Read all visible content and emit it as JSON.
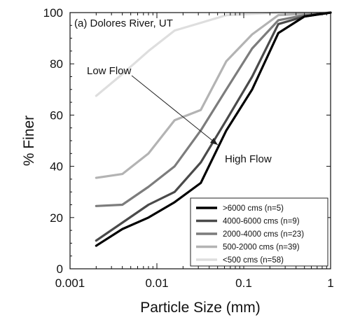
{
  "chart_data": {
    "type": "line",
    "title": "",
    "panel_label": "(a) Dolores River, UT",
    "xlabel": "Particle Size (mm)",
    "ylabel": "% Finer",
    "x_scale": "log",
    "xlim": [
      0.001,
      1
    ],
    "ylim": [
      0,
      100
    ],
    "x_ticks": [
      0.001,
      0.01,
      0.1,
      1
    ],
    "x_tick_labels": [
      "0.001",
      "0.01",
      "0.1",
      "1"
    ],
    "y_ticks": [
      0,
      20,
      40,
      60,
      80,
      100
    ],
    "y_tick_labels": [
      "0",
      "20",
      "40",
      "60",
      "80",
      "100"
    ],
    "grid": false,
    "legend_position": "bottom-right",
    "series": [
      {
        "name": ">6000 cms (n=5)",
        "color": "#000000",
        "points": [
          [
            0.002,
            9
          ],
          [
            0.004,
            15.5
          ],
          [
            0.008,
            20
          ],
          [
            0.016,
            26
          ],
          [
            0.032,
            33.5
          ],
          [
            0.063,
            54
          ],
          [
            0.125,
            70
          ],
          [
            0.25,
            92
          ],
          [
            0.5,
            98.5
          ],
          [
            1,
            100
          ]
        ]
      },
      {
        "name": "4000-6000 cms (n=9)",
        "color": "#4a4a4a",
        "points": [
          [
            0.002,
            11
          ],
          [
            0.004,
            18
          ],
          [
            0.008,
            25
          ],
          [
            0.016,
            30
          ],
          [
            0.032,
            41.5
          ],
          [
            0.063,
            58
          ],
          [
            0.125,
            75
          ],
          [
            0.25,
            95.5
          ],
          [
            0.5,
            98.5
          ],
          [
            1,
            100
          ]
        ]
      },
      {
        "name": "2000-4000 cms (n=23)",
        "color": "#7c7c7c",
        "points": [
          [
            0.002,
            24.5
          ],
          [
            0.004,
            25
          ],
          [
            0.008,
            32
          ],
          [
            0.016,
            40
          ],
          [
            0.032,
            54
          ],
          [
            0.063,
            70
          ],
          [
            0.125,
            86
          ],
          [
            0.25,
            97
          ],
          [
            0.5,
            99
          ],
          [
            1,
            100
          ]
        ]
      },
      {
        "name": "500-2000 cms (n=39)",
        "color": "#b3b3b3",
        "points": [
          [
            0.002,
            35.5
          ],
          [
            0.004,
            37
          ],
          [
            0.008,
            45
          ],
          [
            0.016,
            58
          ],
          [
            0.032,
            62
          ],
          [
            0.063,
            81
          ],
          [
            0.125,
            91.5
          ],
          [
            0.25,
            99
          ],
          [
            0.5,
            99.5
          ],
          [
            1,
            100
          ]
        ]
      },
      {
        "name": "<500 cms (n=58)",
        "color": "#dedede",
        "points": [
          [
            0.002,
            67.5
          ],
          [
            0.004,
            76
          ],
          [
            0.008,
            85
          ],
          [
            0.016,
            93
          ],
          [
            0.032,
            96
          ],
          [
            0.063,
            99
          ],
          [
            0.125,
            99.5
          ],
          [
            0.25,
            100
          ],
          [
            0.5,
            100
          ],
          [
            1,
            100
          ]
        ]
      }
    ],
    "annotations": [
      {
        "text": "Low Flow"
      },
      {
        "text": "High Flow"
      }
    ]
  }
}
